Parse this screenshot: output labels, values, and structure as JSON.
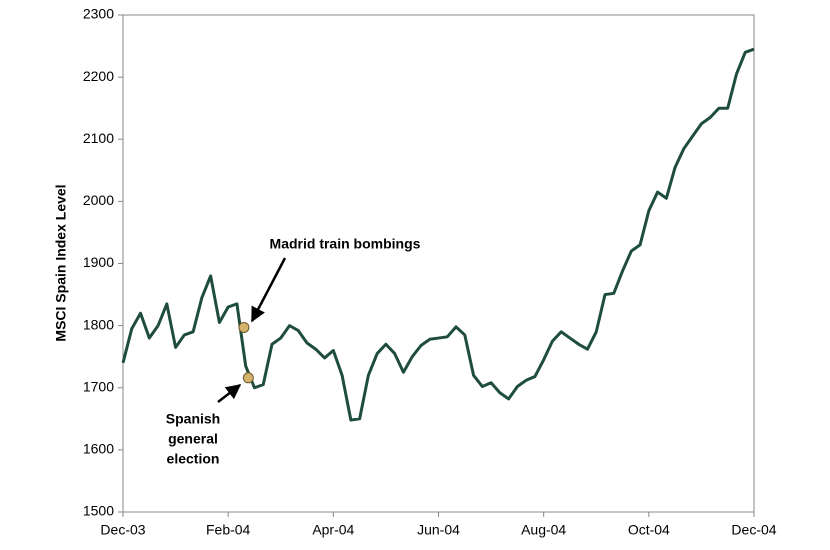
{
  "chart_data": {
    "type": "line",
    "ylabel": "MSCI Spain Index Level",
    "x": [
      "Dec-03",
      null,
      null,
      null,
      null,
      null,
      null,
      null,
      null,
      null,
      null,
      null,
      "Feb-04",
      null,
      null,
      null,
      null,
      null,
      null,
      null,
      null,
      null,
      null,
      null,
      "Apr-04",
      null,
      null,
      null,
      null,
      null,
      null,
      null,
      null,
      null,
      null,
      null,
      "Jun-04",
      null,
      null,
      null,
      null,
      null,
      null,
      null,
      null,
      null,
      null,
      null,
      "Aug-04",
      null,
      null,
      null,
      null,
      null,
      null,
      null,
      null,
      null,
      null,
      null,
      "Oct-04",
      null,
      null,
      null,
      null,
      null,
      null,
      null,
      null,
      null,
      null,
      null,
      "Dec-04"
    ],
    "series": [
      {
        "name": "MSCI Spain",
        "color": "#1e4d3b",
        "values": [
          1740,
          1795,
          1820,
          1780,
          1800,
          1835,
          1765,
          1785,
          1790,
          1845,
          1880,
          1805,
          1830,
          1835,
          1735,
          1700,
          1705,
          1770,
          1780,
          1800,
          1792,
          1772,
          1762,
          1748,
          1760,
          1720,
          1648,
          1650,
          1720,
          1755,
          1770,
          1755,
          1725,
          1750,
          1768,
          1778,
          1780,
          1782,
          1798,
          1785,
          1720,
          1702,
          1708,
          1692,
          1682,
          1702,
          1712,
          1718,
          1745,
          1775,
          1790,
          1780,
          1770,
          1762,
          1790,
          1850,
          1852,
          1888,
          1920,
          1930,
          1985,
          2015,
          2005,
          2055,
          2085,
          2105,
          2125,
          2135,
          2150,
          2150,
          2205,
          2240,
          2245
        ]
      }
    ],
    "ylim": [
      1500,
      2300
    ],
    "yticks": [
      1500,
      1600,
      1700,
      1800,
      1900,
      2000,
      2100,
      2200,
      2300
    ],
    "annotations": [
      {
        "text": [
          "Madrid train bombings"
        ],
        "index": 13.8,
        "value": 1797
      },
      {
        "text": [
          "Spanish",
          "general",
          "election"
        ],
        "index": 14.3,
        "value": 1716
      }
    ],
    "marker_color": "#d6b36c"
  }
}
